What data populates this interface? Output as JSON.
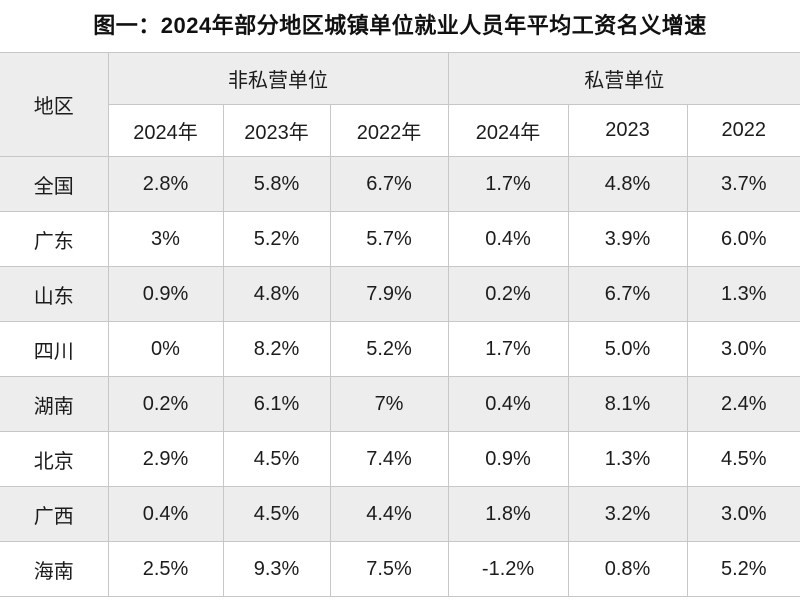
{
  "title": "图一：2024年部分地区城镇单位就业人员年平均工资名义增速",
  "colors": {
    "stripe_background": "#ededed",
    "border": "#c7c7c7",
    "text": "#1c1c1c",
    "title_text": "#111111"
  },
  "chart_data": {
    "type": "table",
    "title": "图一：2024年部分地区城镇单位就业人员年平均工资名义增速",
    "region_header": "地区",
    "groups": [
      {
        "label": "非私营单位",
        "years": [
          "2024年",
          "2023年",
          "2022年"
        ]
      },
      {
        "label": "私营单位",
        "years": [
          "2024年",
          "2023",
          "2022"
        ]
      }
    ],
    "rows": [
      {
        "region": "全国",
        "values": [
          "2.8%",
          "5.8%",
          "6.7%",
          "1.7%",
          "4.8%",
          "3.7%"
        ]
      },
      {
        "region": "广东",
        "values": [
          "3%",
          "5.2%",
          "5.7%",
          "0.4%",
          "3.9%",
          "6.0%"
        ]
      },
      {
        "region": "山东",
        "values": [
          "0.9%",
          "4.8%",
          "7.9%",
          "0.2%",
          "6.7%",
          "1.3%"
        ]
      },
      {
        "region": "四川",
        "values": [
          "0%",
          "8.2%",
          "5.2%",
          "1.7%",
          "5.0%",
          "3.0%"
        ]
      },
      {
        "region": "湖南",
        "values": [
          "0.2%",
          "6.1%",
          "7%",
          "0.4%",
          "8.1%",
          "2.4%"
        ]
      },
      {
        "region": "北京",
        "values": [
          "2.9%",
          "4.5%",
          "7.4%",
          "0.9%",
          "1.3%",
          "4.5%"
        ]
      },
      {
        "region": "广西",
        "values": [
          "0.4%",
          "4.5%",
          "4.4%",
          "1.8%",
          "3.2%",
          "3.0%"
        ]
      },
      {
        "region": "海南",
        "values": [
          "2.5%",
          "9.3%",
          "7.5%",
          "-1.2%",
          "0.8%",
          "5.2%"
        ]
      }
    ]
  }
}
